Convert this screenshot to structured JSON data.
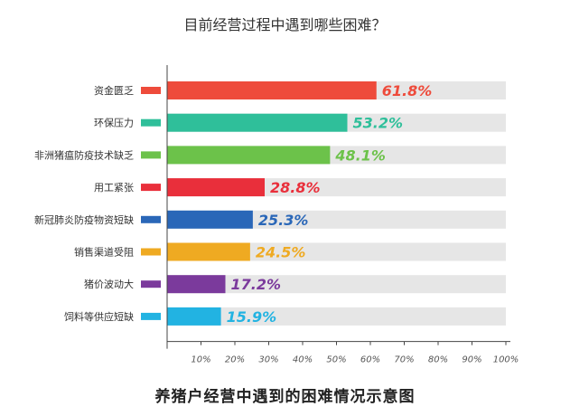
{
  "chart_data": {
    "type": "bar",
    "orientation": "horizontal",
    "title": "目前经营过程中遇到哪些困难？",
    "caption": "养猪户经营中遇到的困难情况示意图",
    "categories": [
      "资金匮乏",
      "环保压力",
      "非洲猪瘟防疫技术缺乏",
      "用工紧张",
      "新冠肺炎防疫物资短缺",
      "销售渠道受阻",
      "猪价波动大",
      "饲料等供应短缺"
    ],
    "values": [
      61.8,
      53.2,
      48.1,
      28.8,
      25.3,
      24.5,
      17.2,
      15.9
    ],
    "value_labels": [
      "61.8%",
      "53.2%",
      "48.1%",
      "28.8%",
      "25.3%",
      "24.5%",
      "17.2%",
      "15.9%"
    ],
    "colors": [
      "#ee4b3b",
      "#2fbf9a",
      "#6cc24a",
      "#e92f3b",
      "#2a67b8",
      "#efaa22",
      "#7b3a9c",
      "#22b3e2"
    ],
    "xlim": [
      0,
      100
    ],
    "x_ticks": [
      "10%",
      "20%",
      "30%",
      "40%",
      "50%",
      "60%",
      "70%",
      "80%",
      "90%",
      "100%"
    ],
    "xlabel": "",
    "ylabel": "",
    "grid": false
  }
}
